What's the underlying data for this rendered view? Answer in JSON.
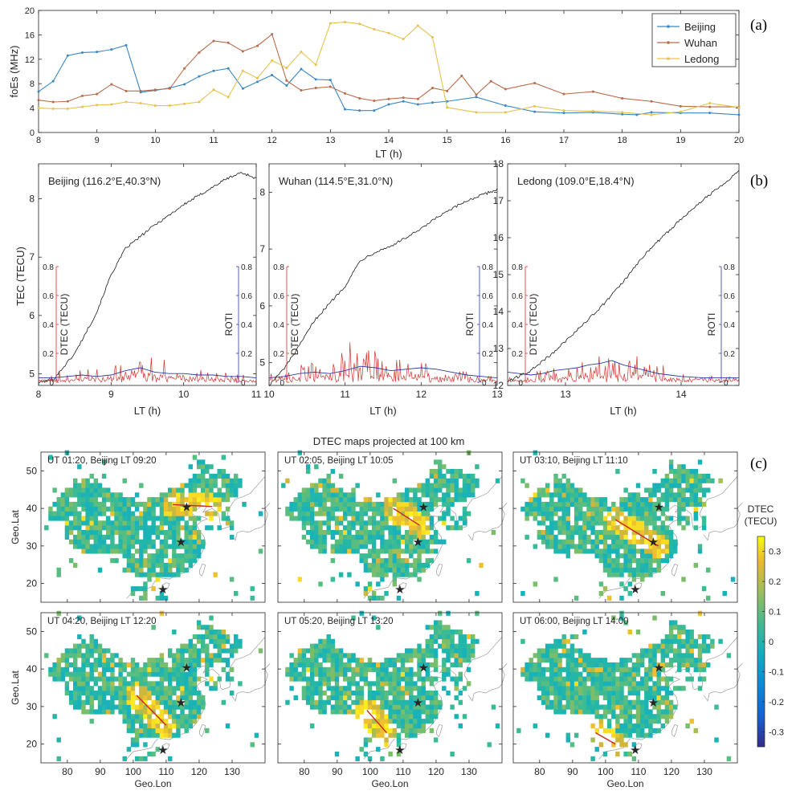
{
  "panel_labels": [
    "(a)",
    "(b)",
    "(c)"
  ],
  "chart_data": [
    {
      "id": "a",
      "type": "line",
      "xlabel": "LT (h)",
      "ylabel": "foEs (MHz)",
      "xlim": [
        8,
        20
      ],
      "ylim": [
        0,
        20
      ],
      "xticks": [
        8,
        9,
        10,
        11,
        12,
        13,
        14,
        15,
        16,
        17,
        18,
        19,
        20
      ],
      "yticks": [
        0,
        4,
        8,
        12,
        16,
        20
      ],
      "grid": false,
      "legend": "top-right",
      "series": [
        {
          "name": "Beijing",
          "color": "#3a87c4",
          "x": [
            8,
            8.25,
            8.5,
            8.75,
            9,
            9.25,
            9.5,
            9.75,
            10,
            10.25,
            10.5,
            10.75,
            11,
            11.25,
            11.5,
            11.75,
            12,
            12.25,
            12.5,
            12.75,
            13,
            13.25,
            13.5,
            13.75,
            14,
            14.25,
            14.5,
            14.75,
            15,
            15.5,
            16,
            16.5,
            17,
            17.5,
            18,
            18.25,
            18.5,
            19,
            19.5,
            20
          ],
          "y": [
            6.7,
            8.4,
            12.6,
            13.1,
            13.2,
            13.6,
            14.3,
            6.6,
            6.9,
            7.3,
            7.9,
            9.2,
            10.1,
            10.5,
            7.2,
            8.3,
            9.4,
            7.7,
            10.4,
            8.7,
            8.6,
            3.8,
            3.6,
            3.6,
            4.6,
            5.1,
            4.6,
            4.9,
            5.1,
            5.8,
            4.4,
            3.4,
            3.2,
            3.3,
            3.0,
            2.9,
            3.3,
            3.2,
            3.2,
            2.9
          ]
        },
        {
          "name": "Wuhan",
          "color": "#b86b4c",
          "x": [
            8,
            8.25,
            8.5,
            8.75,
            9,
            9.25,
            9.5,
            9.75,
            10,
            10.25,
            10.5,
            10.75,
            11,
            11.25,
            11.5,
            11.75,
            12,
            12.25,
            12.5,
            12.75,
            13,
            13.25,
            13.5,
            13.75,
            14,
            14.25,
            14.5,
            14.75,
            15,
            15.25,
            15.5,
            15.75,
            16,
            16.5,
            17,
            17.5,
            18,
            18.5,
            19,
            19.5,
            20
          ],
          "y": [
            5.3,
            5.0,
            5.1,
            6.0,
            6.3,
            7.9,
            6.8,
            6.8,
            7.0,
            7.2,
            10.5,
            13.1,
            15.0,
            14.7,
            13.3,
            14.2,
            16.1,
            8.5,
            6.9,
            7.3,
            7.5,
            6.4,
            5.6,
            5.2,
            5.5,
            5.7,
            5.5,
            7.3,
            6.8,
            9.3,
            6.2,
            8.4,
            7.1,
            8.1,
            6.3,
            6.7,
            5.6,
            5.1,
            4.3,
            4.2,
            4.2
          ]
        },
        {
          "name": "Ledong",
          "color": "#e6c24d",
          "x": [
            8,
            8.25,
            8.5,
            8.75,
            9,
            9.25,
            9.5,
            9.75,
            10,
            10.25,
            10.5,
            10.75,
            11,
            11.25,
            11.5,
            11.75,
            12,
            12.25,
            12.5,
            12.75,
            13,
            13.25,
            13.5,
            13.75,
            14,
            14.25,
            14.5,
            14.75,
            15,
            15.5,
            16,
            16.5,
            17,
            17.5,
            18,
            18.5,
            19,
            19.5,
            20
          ],
          "y": [
            4.0,
            3.9,
            3.9,
            4.2,
            4.5,
            4.6,
            5.0,
            4.8,
            4.4,
            4.4,
            4.7,
            5.0,
            7.0,
            5.8,
            10.1,
            8.9,
            11.8,
            10.6,
            13.2,
            11.1,
            17.9,
            18.1,
            17.8,
            16.9,
            16.3,
            15.3,
            17.5,
            15.6,
            4.1,
            3.3,
            3.3,
            4.3,
            3.6,
            3.5,
            3.3,
            2.9,
            3.4,
            4.8,
            4.1
          ]
        }
      ]
    },
    {
      "id": "b",
      "type": "line",
      "ylabel": "TEC (TECU)",
      "subplots": [
        {
          "title": "Beijing (116.2°E,40.3°N)",
          "xlabel": "LT (h)",
          "xlim": [
            8,
            11
          ],
          "xticks": [
            8,
            9,
            10,
            11
          ],
          "ylim": [
            4.8,
            8.6
          ],
          "yticks": [
            5,
            6,
            7,
            8
          ],
          "tec": {
            "x": [
              8,
              8.2,
              8.5,
              8.8,
              9.0,
              9.2,
              9.4,
              9.6,
              9.8,
              10.0,
              10.2,
              10.4,
              10.6,
              10.8,
              11.0
            ],
            "y": [
              4.85,
              4.9,
              5.35,
              6.05,
              6.7,
              7.15,
              7.35,
              7.55,
              7.72,
              7.9,
              8.05,
              8.2,
              8.35,
              8.45,
              8.35
            ]
          },
          "roti_x": [
            8.0,
            8.2,
            8.4,
            8.6,
            8.8,
            9.0,
            9.2,
            9.4,
            9.6,
            9.8,
            10.0,
            10.2,
            10.4,
            10.6,
            10.8,
            11.0
          ],
          "roti": [
            0.03,
            0.03,
            0.04,
            0.05,
            0.04,
            0.05,
            0.08,
            0.1,
            0.07,
            0.06,
            0.06,
            0.05,
            0.05,
            0.04,
            0.04,
            0.03
          ],
          "dtec_peaks": [
            0.05,
            0.08,
            0.06,
            0.1,
            0.09,
            0.12,
            0.15,
            0.18,
            0.2,
            0.16,
            0.12,
            0.14,
            0.1,
            0.08,
            0.07,
            0.06,
            0.05
          ]
        },
        {
          "title": "Wuhan (114.5°E,31.0°N)",
          "xlabel": "LT (h)",
          "xlim": [
            10,
            13
          ],
          "xticks": [
            10,
            11,
            12,
            13
          ],
          "ylim": [
            4.6,
            8.5
          ],
          "yticks": [
            5,
            6,
            7,
            8
          ],
          "tec": {
            "x": [
              10.0,
              10.2,
              10.4,
              10.6,
              10.8,
              11.0,
              11.2,
              11.4,
              11.6,
              11.8,
              12.0,
              12.2,
              12.4,
              12.6,
              12.8,
              13.0
            ],
            "y": [
              4.6,
              4.9,
              5.3,
              5.75,
              6.05,
              6.35,
              6.8,
              6.95,
              7.05,
              7.2,
              7.35,
              7.55,
              7.7,
              7.85,
              7.95,
              8.05
            ]
          },
          "roti_x": [
            10.0,
            10.2,
            10.4,
            10.6,
            10.8,
            11.0,
            11.2,
            11.4,
            11.6,
            11.8,
            12.0,
            12.2,
            12.4,
            12.6,
            12.8,
            13.0
          ],
          "roti": [
            0.03,
            0.04,
            0.06,
            0.07,
            0.06,
            0.08,
            0.11,
            0.1,
            0.08,
            0.09,
            0.1,
            0.09,
            0.07,
            0.05,
            0.04,
            0.03
          ],
          "dtec_peaks": [
            0.06,
            0.08,
            0.12,
            0.14,
            0.18,
            0.22,
            0.3,
            0.28,
            0.2,
            0.16,
            0.14,
            0.18,
            0.12,
            0.1,
            0.08,
            0.06,
            0.05
          ]
        },
        {
          "title": "Ledong (109.0°E,18.4°N)",
          "xlabel": "LT (h)",
          "xlim": [
            12.5,
            14.5
          ],
          "xticks": [
            13,
            14
          ],
          "ylim": [
            12,
            18
          ],
          "yticks": [
            12,
            13,
            14,
            15,
            16,
            17,
            18
          ],
          "tec": {
            "x": [
              12.5,
              12.7,
              12.9,
              13.1,
              13.3,
              13.5,
              13.7,
              13.9,
              14.1,
              14.3,
              14.5
            ],
            "y": [
              12.1,
              12.4,
              12.9,
              13.5,
              14.1,
              14.8,
              15.6,
              16.2,
              16.8,
              17.3,
              17.8
            ]
          },
          "roti_x": [
            12.5,
            12.6,
            12.7,
            12.8,
            12.9,
            13.0,
            13.1,
            13.2,
            13.3,
            13.4,
            13.5,
            13.6,
            13.7,
            13.8,
            13.9,
            14.0,
            14.2,
            14.5
          ],
          "roti": [
            0.07,
            0.06,
            0.05,
            0.06,
            0.08,
            0.09,
            0.1,
            0.12,
            0.13,
            0.15,
            0.12,
            0.1,
            0.08,
            0.06,
            0.05,
            0.04,
            0.03,
            0.03
          ],
          "dtec_peaks": [
            0.05,
            0.06,
            0.08,
            0.1,
            0.12,
            0.16,
            0.2,
            0.19,
            0.18,
            0.14,
            0.12,
            0.1,
            0.08,
            0.06,
            0.05,
            0.04
          ]
        }
      ],
      "left_inset_axis": {
        "label": "DTEC (TECU)",
        "ticks": [
          0,
          0.2,
          0.4,
          0.6,
          0.8
        ],
        "color": "#d0312d"
      },
      "right_inset_axis": {
        "label": "ROTI",
        "ticks": [
          0,
          0.2,
          0.4,
          0.6,
          0.8
        ],
        "color": "#2a3aa5"
      }
    },
    {
      "id": "c",
      "type": "heatmap",
      "title": "DTEC maps projected at 100 km",
      "xlabel": "Geo.Lon",
      "ylabel": "Geo.Lat",
      "xlim": [
        72,
        140
      ],
      "ylim": [
        15,
        55
      ],
      "xticks": [
        80,
        90,
        100,
        110,
        120,
        130
      ],
      "yticks": [
        20,
        30,
        40,
        50
      ],
      "colorbar": {
        "label": "DTEC\n(TECU)",
        "range": [
          -0.35,
          0.35
        ],
        "ticks": [
          0.3,
          0.2,
          0.1,
          0,
          -0.1,
          -0.2,
          -0.3
        ],
        "tick_labels": [
          "0.3",
          "0.2",
          "0.1",
          "0",
          "-0.1",
          "-0.2",
          "-0.3"
        ]
      },
      "stations": [
        {
          "name": "Beijing",
          "lon": 116.2,
          "lat": 40.3
        },
        {
          "name": "Wuhan",
          "lon": 114.5,
          "lat": 31.0
        },
        {
          "name": "Ledong",
          "lon": 109.0,
          "lat": 18.4
        }
      ],
      "maps": [
        {
          "label": "UT 01:20, Beijing LT 09:20",
          "band": [
            [
              112,
              41
            ],
            [
              124,
              40.5
            ]
          ]
        },
        {
          "label": "UT 02:05, Beijing LT 10:05",
          "band": [
            [
              107,
              40
            ],
            [
              115,
              35.5
            ]
          ]
        },
        {
          "label": "UT 03:10, Beijing LT 11:10",
          "band": [
            [
              103,
              37
            ],
            [
              116,
              30
            ]
          ]
        },
        {
          "label": "UT 04:20, Beijing LT 12:20",
          "band": [
            [
              101,
              33
            ],
            [
              110,
              25
            ]
          ]
        },
        {
          "label": "UT 05:20, Beijing LT 13:20",
          "band": [
            [
              99,
              29
            ],
            [
              105,
              23
            ]
          ]
        },
        {
          "label": "UT 06:00, Beijing LT 14:00",
          "band": [
            [
              97,
              23
            ],
            [
              103,
              20
            ]
          ]
        }
      ]
    }
  ]
}
